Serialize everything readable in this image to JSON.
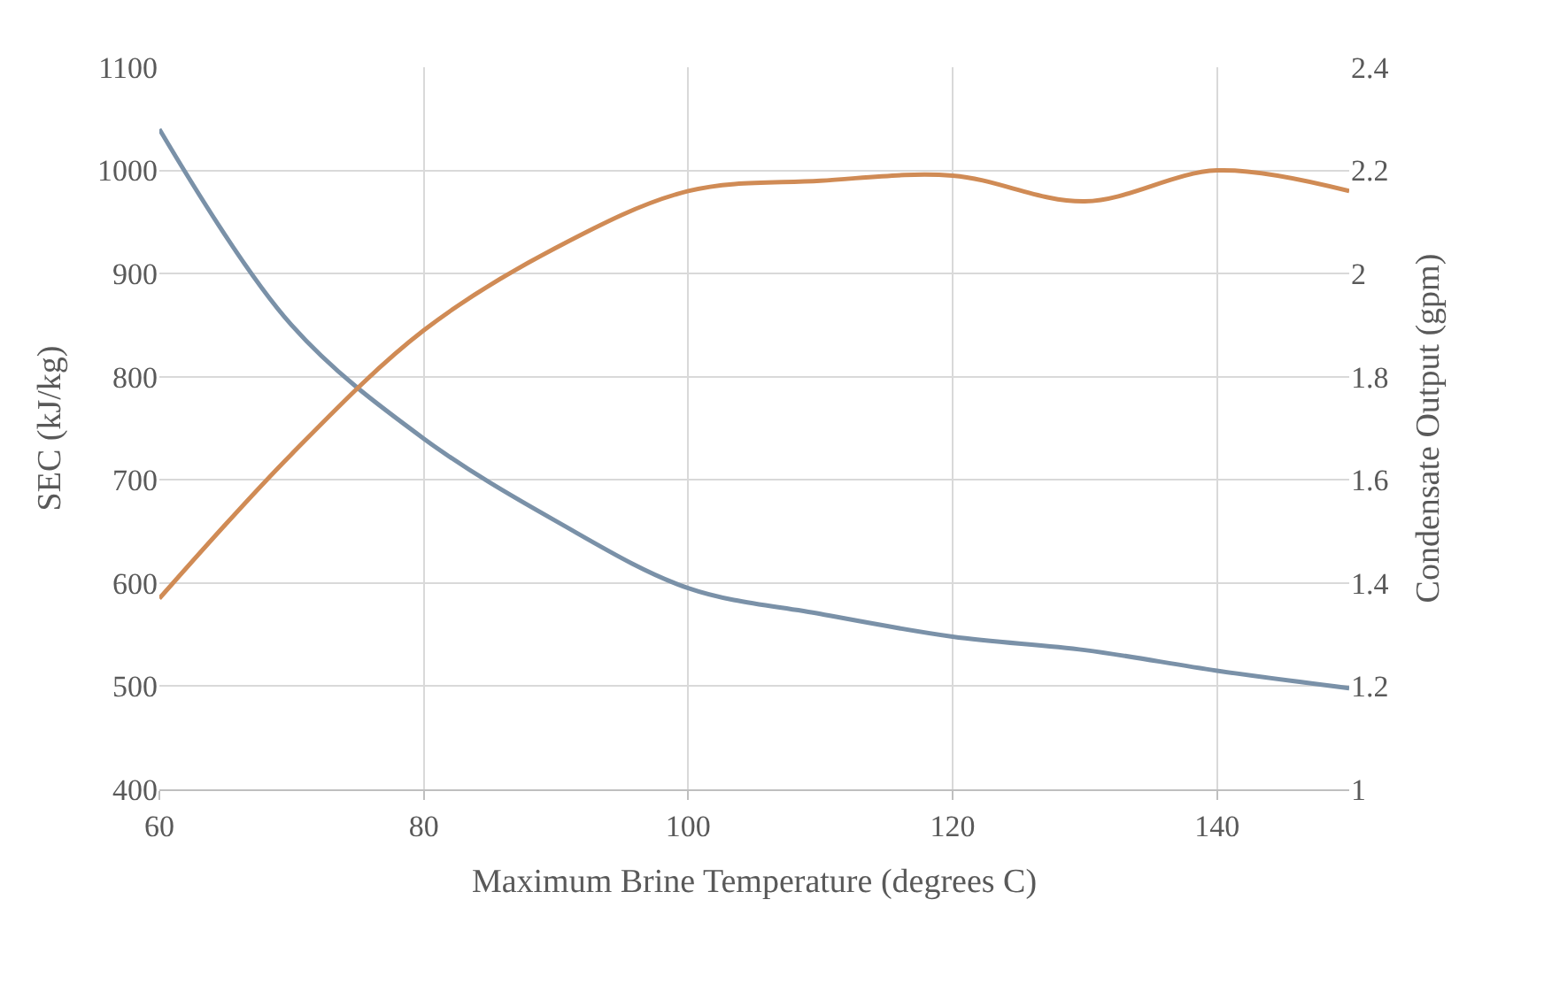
{
  "chart_data": {
    "type": "line",
    "xlabel": "Maximum Brine Temperature (degrees C)",
    "ylabel": "SEC (kJ/kg)",
    "y2label": "Condensate Output (gpm)",
    "x": [
      60,
      70,
      80,
      90,
      100,
      110,
      120,
      130,
      140,
      150
    ],
    "series": [
      {
        "color": "#7a91a8",
        "values": [
          1040,
          850,
          740,
          660,
          595,
          570,
          548,
          535,
          515,
          498
        ]
      },
      {
        "color": "#d08b55",
        "axis": "y2",
        "values": [
          1.37,
          1.65,
          1.89,
          2.05,
          2.16,
          2.18,
          2.19,
          2.14,
          2.2,
          2.16
        ]
      }
    ],
    "xlim": [
      60,
      150
    ],
    "xticks": [
      60,
      80,
      100,
      120,
      140
    ],
    "ylim": [
      400,
      1100
    ],
    "yticks": [
      400,
      500,
      600,
      700,
      800,
      900,
      1000,
      1100
    ],
    "y2lim": [
      1,
      2.4
    ],
    "y2ticks": [
      {
        "value": 1,
        "label": "1"
      },
      {
        "value": 1.2,
        "label": "1.2"
      },
      {
        "value": 1.4,
        "label": "1.4"
      },
      {
        "value": 1.6,
        "label": "1.6"
      },
      {
        "value": 1.8,
        "label": "1.8"
      },
      {
        "value": 2,
        "label": "2"
      },
      {
        "value": 2.2,
        "label": "2.2"
      },
      {
        "value": 2.4,
        "label": "2.4"
      }
    ],
    "grid": true,
    "marker": "none",
    "line_style": "solid"
  }
}
